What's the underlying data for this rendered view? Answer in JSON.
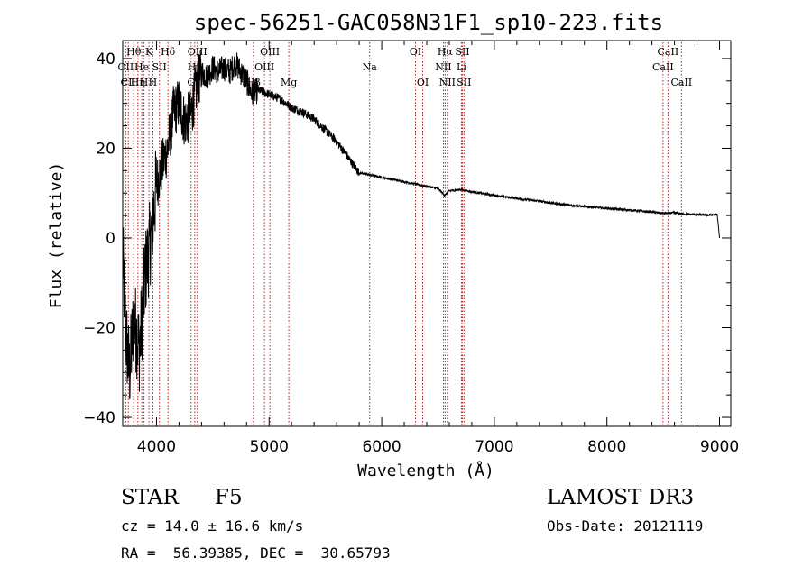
{
  "chart_data": {
    "type": "line",
    "title": "spec-56251-GAC058N31F1_sp10-223.fits",
    "xlabel": "Wavelength (Å)",
    "ylabel": "Flux (relative)",
    "xlim": [
      3700,
      9100
    ],
    "ylim": [
      -42,
      44
    ],
    "x_ticks": [
      4000,
      5000,
      6000,
      7000,
      8000,
      9000
    ],
    "x_tick_labels": [
      "4000",
      "5000",
      "6000",
      "7000",
      "8000",
      "9000"
    ],
    "y_ticks": [
      -40,
      -20,
      0,
      20,
      40
    ],
    "y_tick_labels": [
      "−40",
      "−20",
      "0",
      "20",
      "40"
    ],
    "line_color": "#000000",
    "marker_color": "#b22222",
    "spectrum_nodes": [
      {
        "x": 3700,
        "y": -4
      },
      {
        "x": 3730,
        "y": -22
      },
      {
        "x": 3760,
        "y": -30
      },
      {
        "x": 3800,
        "y": -18
      },
      {
        "x": 3850,
        "y": -25
      },
      {
        "x": 3900,
        "y": -8
      },
      {
        "x": 3950,
        "y": 0
      },
      {
        "x": 4000,
        "y": 12
      },
      {
        "x": 4050,
        "y": 16
      },
      {
        "x": 4100,
        "y": 20
      },
      {
        "x": 4150,
        "y": 28
      },
      {
        "x": 4200,
        "y": 30
      },
      {
        "x": 4250,
        "y": 26
      },
      {
        "x": 4300,
        "y": 27
      },
      {
        "x": 4350,
        "y": 33
      },
      {
        "x": 4400,
        "y": 37
      },
      {
        "x": 4450,
        "y": 36
      },
      {
        "x": 4500,
        "y": 38
      },
      {
        "x": 4550,
        "y": 37
      },
      {
        "x": 4600,
        "y": 38
      },
      {
        "x": 4650,
        "y": 37
      },
      {
        "x": 4700,
        "y": 39
      },
      {
        "x": 4750,
        "y": 37
      },
      {
        "x": 4800,
        "y": 35
      },
      {
        "x": 4850,
        "y": 32
      },
      {
        "x": 4900,
        "y": 33
      },
      {
        "x": 5000,
        "y": 32
      },
      {
        "x": 5100,
        "y": 31
      },
      {
        "x": 5200,
        "y": 29
      },
      {
        "x": 5300,
        "y": 28
      },
      {
        "x": 5400,
        "y": 26.5
      },
      {
        "x": 5500,
        "y": 24
      },
      {
        "x": 5600,
        "y": 21.5
      },
      {
        "x": 5700,
        "y": 18
      },
      {
        "x": 5800,
        "y": 14.5
      },
      {
        "x": 5900,
        "y": 14
      },
      {
        "x": 6000,
        "y": 13.5
      },
      {
        "x": 6100,
        "y": 13
      },
      {
        "x": 6200,
        "y": 12.5
      },
      {
        "x": 6300,
        "y": 12
      },
      {
        "x": 6400,
        "y": 11.5
      },
      {
        "x": 6500,
        "y": 11
      },
      {
        "x": 6560,
        "y": 9.5
      },
      {
        "x": 6600,
        "y": 10.5
      },
      {
        "x": 6700,
        "y": 10.8
      },
      {
        "x": 6800,
        "y": 10.3
      },
      {
        "x": 7000,
        "y": 9.5
      },
      {
        "x": 7200,
        "y": 8.8
      },
      {
        "x": 7400,
        "y": 8.2
      },
      {
        "x": 7600,
        "y": 7.5
      },
      {
        "x": 7800,
        "y": 7
      },
      {
        "x": 8000,
        "y": 6.6
      },
      {
        "x": 8200,
        "y": 6.2
      },
      {
        "x": 8400,
        "y": 5.8
      },
      {
        "x": 8500,
        "y": 5.5
      },
      {
        "x": 8600,
        "y": 5.6
      },
      {
        "x": 8700,
        "y": 5.3
      },
      {
        "x": 8800,
        "y": 5.2
      },
      {
        "x": 8900,
        "y": 5.1
      },
      {
        "x": 8980,
        "y": 5.2
      },
      {
        "x": 9000,
        "y": 0
      }
    ],
    "line_markers": [
      {
        "x": 3727,
        "label": "OII",
        "row": 1
      },
      {
        "x": 3750,
        "label": "CII",
        "row": 2
      },
      {
        "x": 3798,
        "label": "Hθ",
        "row": 0
      },
      {
        "x": 3835,
        "label": "Hη",
        "row": 2
      },
      {
        "x": 3869,
        "label": "He",
        "row": 1
      },
      {
        "x": 3889,
        "label": "H",
        "row": 2
      },
      {
        "x": 3933,
        "label": "K",
        "row": 0
      },
      {
        "x": 3968,
        "label": "H",
        "row": 2
      },
      {
        "x": 4026,
        "label": "SII",
        "row": 1
      },
      {
        "x": 4102,
        "label": "Hδ",
        "row": 0
      },
      {
        "x": 4307,
        "label": "G",
        "row": 2
      },
      {
        "x": 4340,
        "label": "Hγ",
        "row": 1
      },
      {
        "x": 4363,
        "label": "OIII",
        "row": 0
      },
      {
        "x": 4861,
        "label": "Hβ",
        "row": 2
      },
      {
        "x": 4959,
        "label": "OIII",
        "row": 1
      },
      {
        "x": 5007,
        "label": "OIII",
        "row": 0
      },
      {
        "x": 5175,
        "label": "Mg",
        "row": 2
      },
      {
        "x": 5893,
        "label": "Na",
        "row": 1
      },
      {
        "x": 6300,
        "label": "OI",
        "row": 0
      },
      {
        "x": 6364,
        "label": "OI",
        "row": 2
      },
      {
        "x": 6548,
        "label": "NII",
        "row": 1
      },
      {
        "x": 6563,
        "label": "Hα",
        "row": 0
      },
      {
        "x": 6583,
        "label": "NII",
        "row": 2
      },
      {
        "x": 6708,
        "label": "Li",
        "row": 1
      },
      {
        "x": 6716,
        "label": "SII",
        "row": 0
      },
      {
        "x": 6731,
        "label": "SII",
        "row": 2
      },
      {
        "x": 8498,
        "label": "CaII",
        "row": 1
      },
      {
        "x": 8542,
        "label": "CaII",
        "row": 0
      },
      {
        "x": 8662,
        "label": "CaII",
        "row": 2
      }
    ]
  },
  "info": {
    "object_class": "STAR",
    "subclass": "F5",
    "survey": "LAMOST DR3",
    "redshift_text": "cz = 14.0 ± 16.6 km/s",
    "obs_date_text": "Obs-Date: 20121119",
    "coords_text": "RA =  56.39385, DEC =  30.65793"
  }
}
